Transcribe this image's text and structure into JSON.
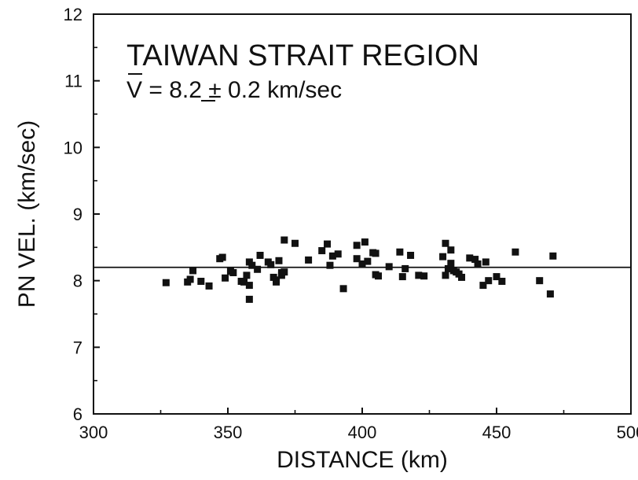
{
  "chart_data": {
    "type": "scatter",
    "title": "TAIWAN STRAIT REGION",
    "subtitle": "V = 8.2 ± 0.2 km/sec",
    "xlabel": "DISTANCE (km)",
    "ylabel": "PN VEL. (km/sec)",
    "xlim": [
      300,
      500
    ],
    "ylim": [
      6,
      12
    ],
    "xticks": [
      300,
      350,
      400,
      450,
      500
    ],
    "yticks": [
      6,
      7,
      8,
      9,
      10,
      11,
      12
    ],
    "grid": false,
    "mean_line": 8.2,
    "points": [
      [
        327,
        7.97
      ],
      [
        335,
        7.98
      ],
      [
        336,
        8.02
      ],
      [
        337,
        8.15
      ],
      [
        340,
        7.99
      ],
      [
        343,
        7.92
      ],
      [
        347,
        8.33
      ],
      [
        348,
        8.35
      ],
      [
        349,
        8.04
      ],
      [
        351,
        8.14
      ],
      [
        352,
        8.12
      ],
      [
        355,
        7.99
      ],
      [
        356,
        7.98
      ],
      [
        357,
        8.08
      ],
      [
        358,
        8.28
      ],
      [
        358,
        7.93
      ],
      [
        358,
        7.72
      ],
      [
        359,
        8.23
      ],
      [
        361,
        8.17
      ],
      [
        362,
        8.38
      ],
      [
        365,
        8.28
      ],
      [
        366,
        8.24
      ],
      [
        367,
        8.05
      ],
      [
        368,
        8.01
      ],
      [
        368,
        7.98
      ],
      [
        369,
        8.3
      ],
      [
        370,
        8.12
      ],
      [
        370,
        8.08
      ],
      [
        371,
        8.13
      ],
      [
        371,
        8.61
      ],
      [
        375,
        8.56
      ],
      [
        380,
        8.31
      ],
      [
        385,
        8.45
      ],
      [
        387,
        8.55
      ],
      [
        388,
        8.23
      ],
      [
        389,
        8.37
      ],
      [
        391,
        8.4
      ],
      [
        393,
        7.88
      ],
      [
        398,
        8.53
      ],
      [
        398,
        8.33
      ],
      [
        400,
        8.25
      ],
      [
        401,
        8.58
      ],
      [
        402,
        8.29
      ],
      [
        404,
        8.42
      ],
      [
        405,
        8.41
      ],
      [
        405,
        8.09
      ],
      [
        406,
        8.07
      ],
      [
        410,
        8.21
      ],
      [
        414,
        8.43
      ],
      [
        415,
        8.06
      ],
      [
        416,
        8.18
      ],
      [
        418,
        8.38
      ],
      [
        421,
        8.08
      ],
      [
        423,
        8.07
      ],
      [
        430,
        8.36
      ],
      [
        431,
        8.56
      ],
      [
        431,
        8.08
      ],
      [
        432,
        8.18
      ],
      [
        433,
        8.46
      ],
      [
        433,
        8.26
      ],
      [
        434,
        8.15
      ],
      [
        435,
        8.13
      ],
      [
        436,
        8.1
      ],
      [
        437,
        8.05
      ],
      [
        440,
        8.34
      ],
      [
        442,
        8.32
      ],
      [
        443,
        8.25
      ],
      [
        445,
        7.93
      ],
      [
        446,
        8.28
      ],
      [
        447,
        8.0
      ],
      [
        450,
        8.06
      ],
      [
        452,
        7.99
      ],
      [
        457,
        8.43
      ],
      [
        466,
        8.0
      ],
      [
        470,
        7.8
      ],
      [
        471,
        8.37
      ]
    ]
  },
  "colors": {
    "ink": "#111111",
    "background": "#ffffff"
  }
}
